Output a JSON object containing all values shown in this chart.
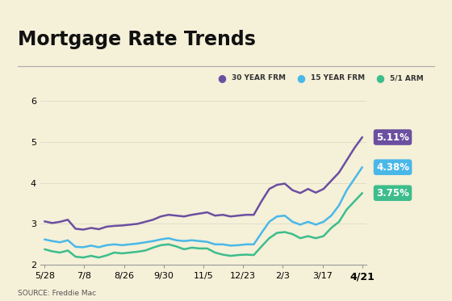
{
  "title": "Mortgage Rate Trends",
  "source": "SOURCE: Freddie Mac",
  "background_color": "#f5f0d8",
  "legend_labels": [
    "30 YEAR FRM",
    "15 YEAR FRM",
    "5/1 ARM"
  ],
  "legend_colors": [
    "#6b4fa0",
    "#49b8e8",
    "#3dbd8c"
  ],
  "end_labels": [
    "5.11%",
    "4.38%",
    "3.75%"
  ],
  "x_ticks": [
    "5/28",
    "7/8",
    "8/26",
    "9/30",
    "11/5",
    "12/23",
    "2/3",
    "3/17",
    "4/21"
  ],
  "ylim": [
    2.0,
    6.4
  ],
  "yticks": [
    2,
    3,
    4,
    5,
    6
  ],
  "series_30yr": [
    3.06,
    3.02,
    3.05,
    3.1,
    2.88,
    2.86,
    2.9,
    2.87,
    2.93,
    2.95,
    2.96,
    2.98,
    3.0,
    3.05,
    3.1,
    3.18,
    3.22,
    3.2,
    3.18,
    3.22,
    3.25,
    3.28,
    3.2,
    3.22,
    3.18,
    3.2,
    3.22,
    3.22,
    3.55,
    3.85,
    3.95,
    3.98,
    3.82,
    3.75,
    3.85,
    3.76,
    3.85,
    4.05,
    4.25,
    4.55,
    4.85,
    5.11
  ],
  "series_15yr": [
    2.62,
    2.58,
    2.55,
    2.6,
    2.44,
    2.43,
    2.47,
    2.43,
    2.48,
    2.5,
    2.48,
    2.5,
    2.52,
    2.55,
    2.58,
    2.62,
    2.65,
    2.6,
    2.58,
    2.6,
    2.58,
    2.56,
    2.5,
    2.5,
    2.47,
    2.48,
    2.5,
    2.5,
    2.78,
    3.05,
    3.18,
    3.2,
    3.05,
    2.98,
    3.05,
    2.98,
    3.05,
    3.2,
    3.45,
    3.82,
    4.1,
    4.38
  ],
  "series_arm": [
    2.38,
    2.33,
    2.3,
    2.35,
    2.2,
    2.18,
    2.22,
    2.18,
    2.23,
    2.3,
    2.28,
    2.3,
    2.32,
    2.35,
    2.42,
    2.48,
    2.5,
    2.45,
    2.38,
    2.42,
    2.4,
    2.4,
    2.3,
    2.25,
    2.22,
    2.24,
    2.25,
    2.24,
    2.45,
    2.65,
    2.78,
    2.8,
    2.75,
    2.65,
    2.7,
    2.65,
    2.7,
    2.9,
    3.05,
    3.35,
    3.55,
    3.75
  ],
  "line_width": 1.8,
  "title_fontsize": 17,
  "tick_fontsize": 8,
  "source_fontsize": 6.5
}
